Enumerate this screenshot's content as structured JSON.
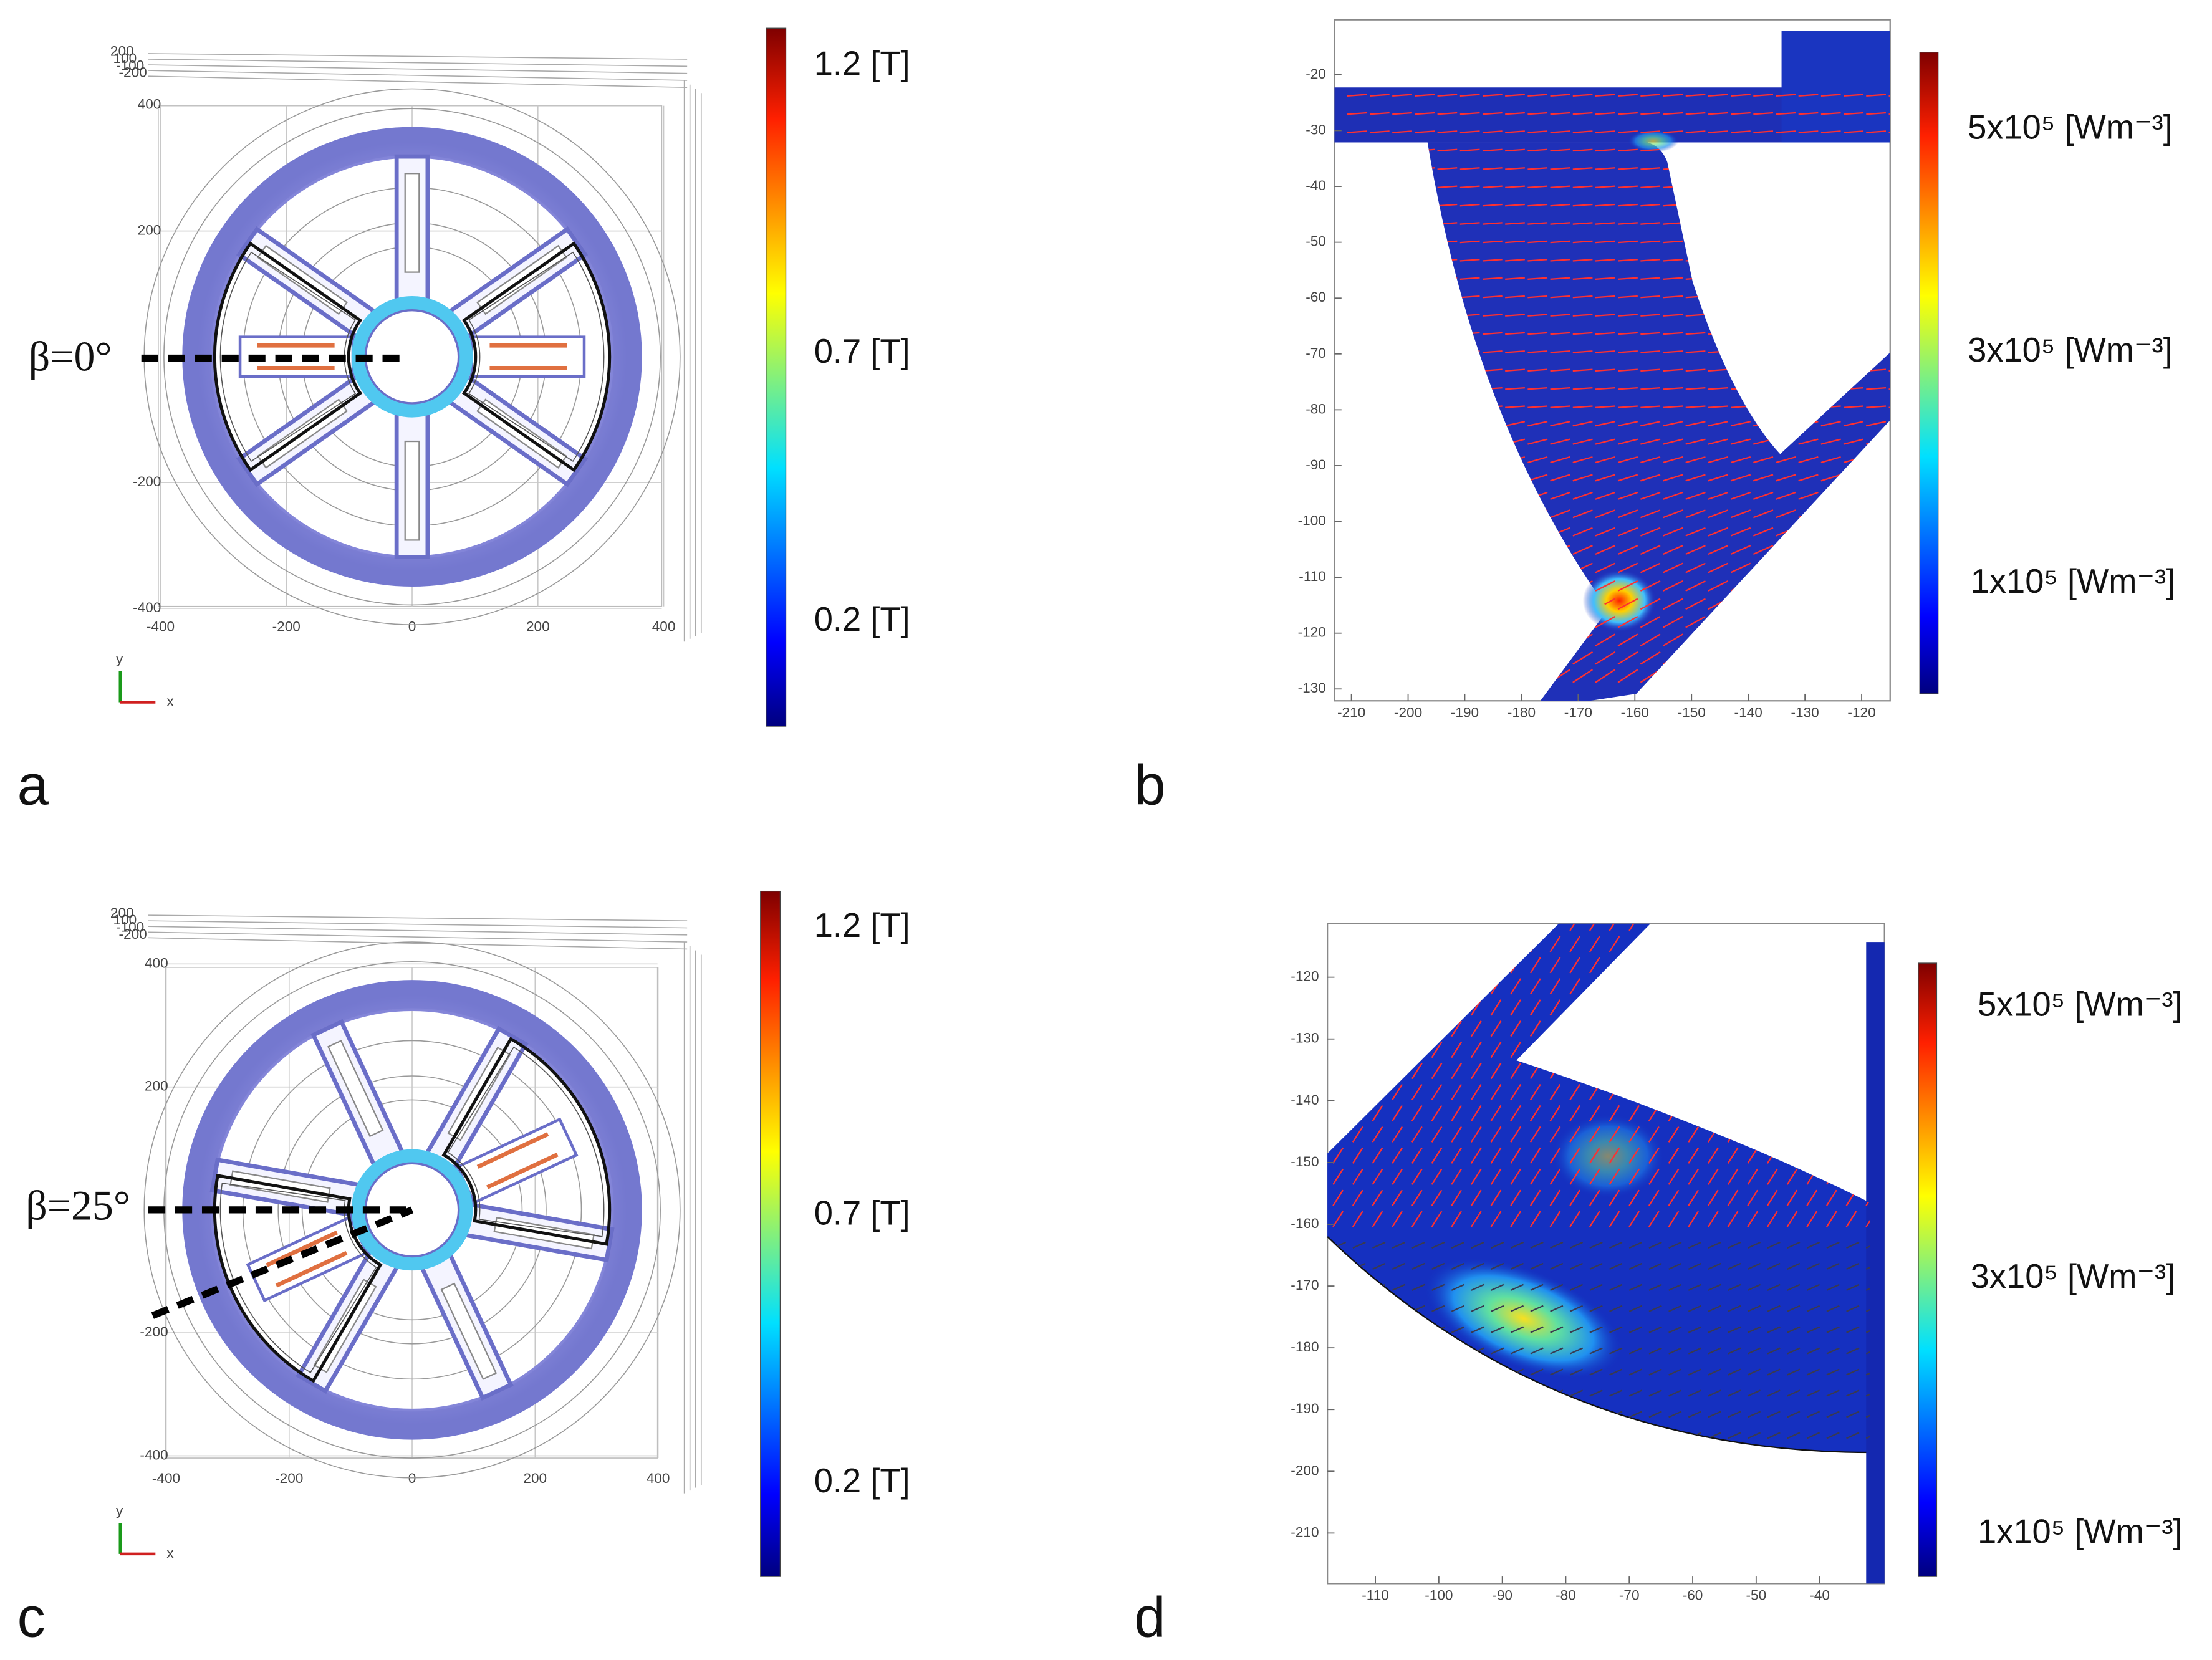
{
  "panels": [
    {
      "label": "a",
      "annotation": "β=0°",
      "xticks": [
        -400,
        -200,
        0,
        200,
        400
      ],
      "yticks": [
        400,
        200,
        -200,
        -400
      ],
      "zticks": [
        200,
        100,
        -100,
        -200
      ],
      "axis_labels": [
        "x",
        "y"
      ],
      "colorbar_labels": [
        "1.2 [T]",
        "0.7 [T]",
        "0.2 [T]"
      ]
    },
    {
      "label": "b",
      "xticks": [
        -210,
        -200,
        -190,
        -180,
        -170,
        -160,
        -150,
        -140,
        -130,
        -120
      ],
      "yticks": [
        -20,
        -30,
        -40,
        -50,
        -60,
        -70,
        -80,
        -90,
        -100,
        -110,
        -120,
        -130
      ],
      "colorbar_labels": [
        "5x10⁵ [Wm⁻³]",
        "3x10⁵ [Wm⁻³]",
        "1x10⁵ [Wm⁻³]"
      ]
    },
    {
      "label": "c",
      "annotation": "β=25°",
      "xticks": [
        -400,
        -200,
        0,
        200,
        400
      ],
      "yticks": [
        400,
        200,
        -200,
        -400
      ],
      "zticks": [
        200,
        100,
        -100,
        -200
      ],
      "axis_labels": [
        "x",
        "y"
      ],
      "colorbar_labels": [
        "1.2 [T]",
        "0.7 [T]",
        "0.2 [T]"
      ]
    },
    {
      "label": "d",
      "xticks": [
        -110,
        -100,
        -90,
        -80,
        -70,
        -60,
        -50,
        -40
      ],
      "yticks": [
        -120,
        -130,
        -140,
        -150,
        -160,
        -170,
        -180,
        -190,
        -200,
        -210
      ],
      "colorbar_labels": [
        "5x10⁵ [Wm⁻³]",
        "3x10⁵ [Wm⁻³]",
        "1x10⁵ [Wm⁻³]"
      ]
    }
  ]
}
